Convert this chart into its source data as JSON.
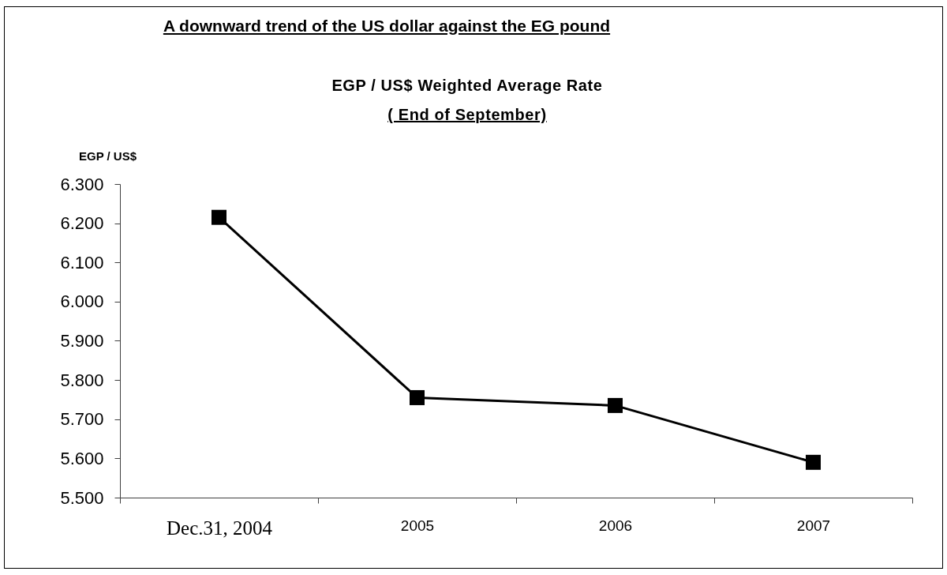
{
  "chart_data": {
    "type": "line",
    "title": "A downward trend of the US dollar against the EG pound",
    "subtitle": "EGP / US$ Weighted Average Rate\n( End of September)",
    "ylabel": "EGP / US$",
    "categories": [
      "Dec.31, 2004",
      "2005",
      "2006",
      "2007"
    ],
    "series": [
      {
        "color": "#000000",
        "values": [
          6.215,
          5.755,
          5.735,
          5.59
        ]
      }
    ],
    "ylim": [
      5.5,
      6.3
    ],
    "yticks": [
      {
        "value": 5.5,
        "label": "5.500"
      },
      {
        "value": 5.6,
        "label": "5.600"
      },
      {
        "value": 5.7,
        "label": "5.700"
      },
      {
        "value": 5.8,
        "label": "5.800"
      },
      {
        "value": 5.9,
        "label": "5.900"
      },
      {
        "value": 6.0,
        "label": "6.000"
      },
      {
        "value": 6.1,
        "label": "6.100"
      },
      {
        "value": 6.2,
        "label": "6.200"
      },
      {
        "value": 6.3,
        "label": "6.300"
      }
    ],
    "marker": "square",
    "line_style": "solid"
  }
}
